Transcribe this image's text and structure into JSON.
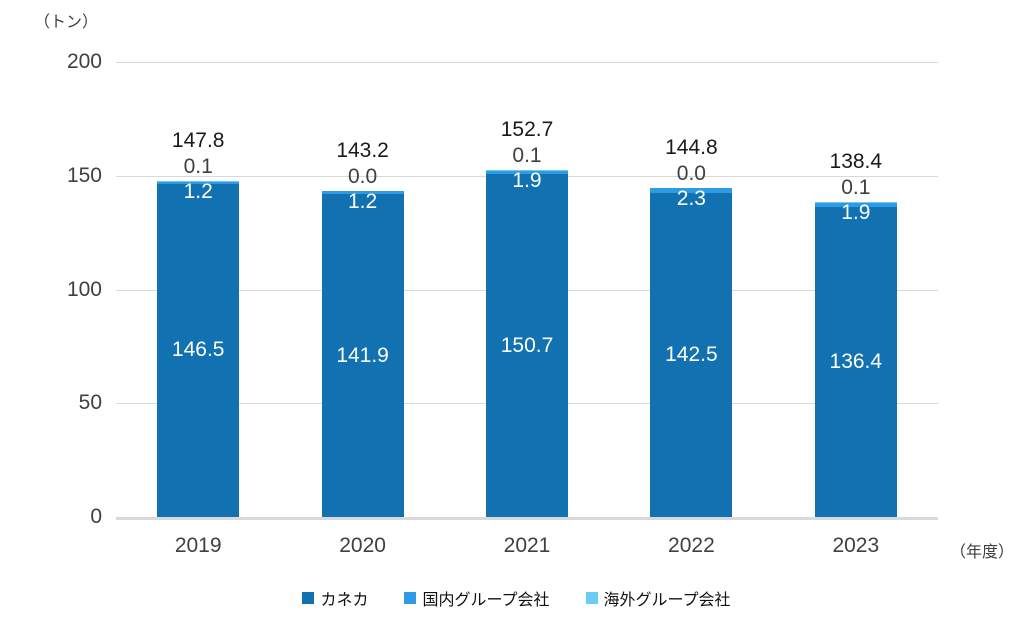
{
  "chart_data": {
    "type": "bar",
    "stacked": true,
    "title": "",
    "unit_label": "（トン）",
    "x_axis_label": "（年度）",
    "categories": [
      "2019",
      "2020",
      "2021",
      "2022",
      "2023"
    ],
    "series": [
      {
        "name": "カネカ",
        "color": "#1271b1",
        "values": [
          146.5,
          141.9,
          150.7,
          142.5,
          136.4
        ]
      },
      {
        "name": "国内グループ会社",
        "color": "#2e9be4",
        "values": [
          1.2,
          1.2,
          1.9,
          2.3,
          1.9
        ]
      },
      {
        "name": "海外グループ会社",
        "color": "#6bcdf5",
        "values": [
          0.1,
          0.0,
          0.1,
          0.0,
          0.1
        ]
      }
    ],
    "totals": [
      147.8,
      143.2,
      152.7,
      144.8,
      138.4
    ],
    "y_ticks": [
      0,
      50,
      100,
      150,
      200
    ],
    "ylim": [
      0,
      200
    ],
    "grid": true,
    "legend_position": "bottom",
    "colors": {
      "gridline": "#d9d9d9",
      "axis_text": "#404040",
      "inside_label": "#ffffff",
      "total_label": "#1a1a1a"
    }
  }
}
